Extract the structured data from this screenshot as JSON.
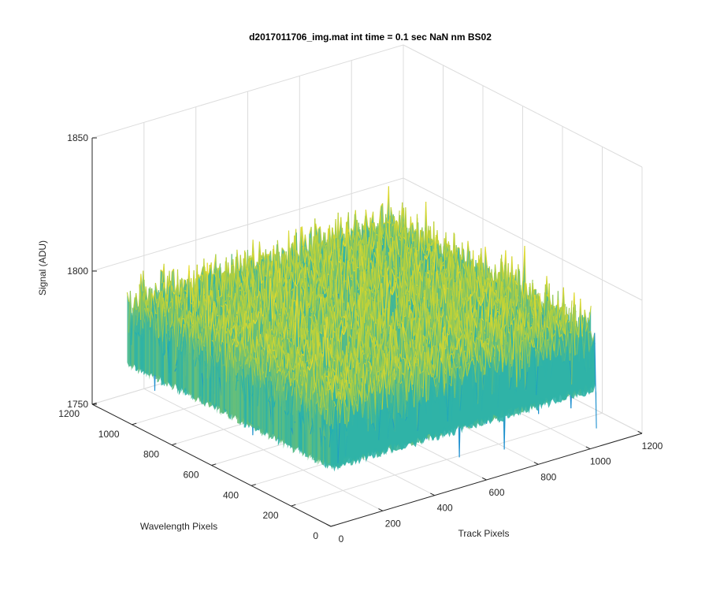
{
  "chart_data": {
    "type": "surface",
    "title": "d2017011706_img.mat int time = 0.1 sec  NaN nm BS02",
    "xlabel": "Track Pixels",
    "ylabel": "Wavelength Pixels",
    "zlabel": "Signal (ADU)",
    "xlim": [
      0,
      1200
    ],
    "ylim": [
      0,
      1200
    ],
    "zlim": [
      1750,
      1850
    ],
    "x_ticks": [
      0,
      200,
      400,
      600,
      800,
      1000,
      1200
    ],
    "y_ticks": [
      0,
      200,
      400,
      600,
      800,
      1000,
      1200
    ],
    "z_ticks": [
      1750,
      1800,
      1850
    ],
    "x_tick_labels": [
      "0",
      "200",
      "400",
      "600",
      "800",
      "1000",
      "1200"
    ],
    "y_tick_labels": [
      "0",
      "200",
      "400",
      "600",
      "800",
      "1000",
      "1200"
    ],
    "z_tick_labels": [
      "1750",
      "1800",
      "1850"
    ],
    "data_extent": {
      "x": [
        0,
        1024
      ],
      "y": [
        0,
        1024
      ]
    },
    "signal_mean": 1790,
    "signal_range": [
      1757,
      1842
    ],
    "grid": true,
    "colormap": "parula",
    "colors": {
      "low": "#1e8fd0",
      "mid": "#22b0b0",
      "high": "#b7d03a",
      "peak": "#eadc2e"
    }
  }
}
